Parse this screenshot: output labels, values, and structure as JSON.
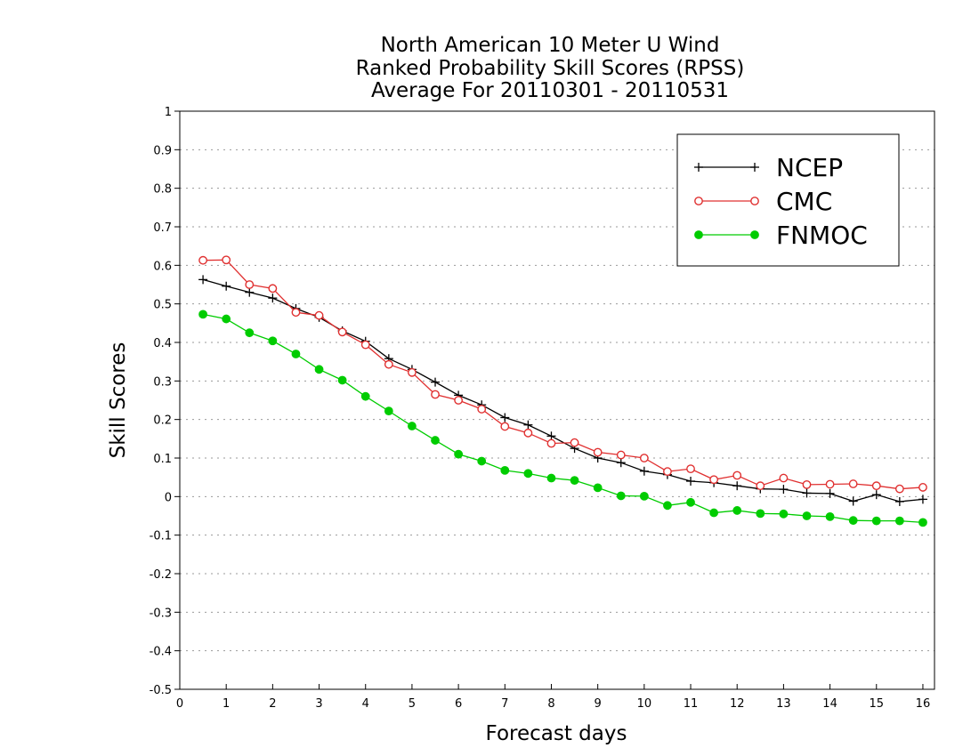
{
  "chart_data": {
    "type": "line",
    "title": [
      "North American 10 Meter U Wind",
      "Ranked Probability Skill Scores (RPSS)",
      "Average For 20110301 - 20110531"
    ],
    "xlabel": "Forecast days",
    "ylabel": "Skill Scores",
    "xlim": [
      0,
      16.25
    ],
    "ylim": [
      -0.5,
      1
    ],
    "x_ticks": [
      0,
      1,
      2,
      3,
      4,
      5,
      6,
      7,
      8,
      9,
      10,
      11,
      12,
      13,
      14,
      15,
      16
    ],
    "y_ticks": [
      -0.5,
      -0.4,
      -0.3,
      -0.2,
      -0.1,
      0,
      0.1,
      0.2,
      0.3,
      0.4,
      0.5,
      0.6,
      0.7,
      0.8,
      0.9,
      1
    ],
    "grid": "horizontal dotted",
    "legend_position": "top-right",
    "x": [
      0.5,
      1,
      1.5,
      2,
      2.5,
      3,
      3.5,
      4,
      4.5,
      5,
      5.5,
      6,
      6.5,
      7,
      7.5,
      8,
      8.5,
      9,
      9.5,
      10,
      10.5,
      11,
      11.5,
      12,
      12.5,
      13,
      13.5,
      14,
      14.5,
      15,
      15.5,
      16
    ],
    "series": [
      {
        "name": "NCEP",
        "color": "#000000",
        "marker": "plus",
        "values": [
          0.563,
          0.546,
          0.53,
          0.515,
          0.488,
          0.465,
          0.43,
          0.403,
          0.358,
          0.33,
          0.297,
          0.263,
          0.238,
          0.205,
          0.186,
          0.157,
          0.125,
          0.1,
          0.088,
          0.066,
          0.057,
          0.04,
          0.036,
          0.028,
          0.02,
          0.019,
          0.009,
          0.008,
          -0.012,
          0.005,
          -0.013,
          -0.007
        ]
      },
      {
        "name": "CMC",
        "color": "#e03030",
        "marker": "open-circle",
        "values": [
          0.613,
          0.614,
          0.55,
          0.54,
          0.478,
          0.47,
          0.427,
          0.394,
          0.343,
          0.322,
          0.265,
          0.25,
          0.227,
          0.182,
          0.165,
          0.138,
          0.14,
          0.115,
          0.108,
          0.1,
          0.065,
          0.072,
          0.044,
          0.055,
          0.028,
          0.048,
          0.031,
          0.032,
          0.033,
          0.028,
          0.02,
          0.024
        ]
      },
      {
        "name": "FNMOC",
        "color": "#00cc00",
        "marker": "filled-circle",
        "values": [
          0.473,
          0.461,
          0.425,
          0.404,
          0.37,
          0.33,
          0.302,
          0.26,
          0.222,
          0.183,
          0.146,
          0.11,
          0.092,
          0.068,
          0.06,
          0.048,
          0.042,
          0.023,
          0.002,
          0.001,
          -0.023,
          -0.015,
          -0.042,
          -0.036,
          -0.044,
          -0.045,
          -0.05,
          -0.052,
          -0.062,
          -0.063,
          -0.063,
          -0.067
        ]
      }
    ]
  }
}
